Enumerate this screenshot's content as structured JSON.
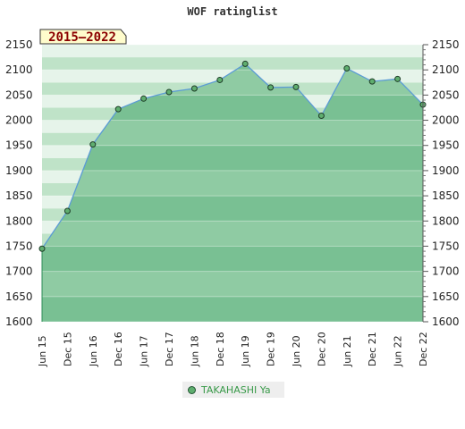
{
  "chart_data": {
    "type": "area",
    "title": "WOF ratinglist",
    "period_badge": "2015–2022",
    "categories": [
      "Jun 15",
      "Dec 15",
      "Jun 16",
      "Dec 16",
      "Jun 17",
      "Dec 17",
      "Jun 18",
      "Dec 18",
      "Jun 19",
      "Dec 19",
      "Jun 20",
      "Dec 20",
      "Jun 21",
      "Dec 21",
      "Jun 22",
      "Dec 22"
    ],
    "series": [
      {
        "name": "TAKAHASHI Ya",
        "values": [
          1745,
          1820,
          1952,
          2022,
          2043,
          2056,
          2063,
          2080,
          2112,
          2065,
          2066,
          2009,
          2103,
          2077,
          2082,
          2031
        ]
      }
    ],
    "ylim": [
      1600,
      2150
    ],
    "yticks": [
      1600,
      1650,
      1700,
      1750,
      1800,
      1850,
      1900,
      1950,
      2000,
      2050,
      2100,
      2150
    ],
    "grid": true,
    "legend_position": "bottom",
    "colors": {
      "line": "#5b9bd5",
      "marker": "#5fae6f",
      "band_dark": "#79c093",
      "band_light": "#8fcba3",
      "bg_dark": "#bfe3c8",
      "bg_light": "#e6f4ea",
      "badge_bg": "#fffccc"
    }
  }
}
